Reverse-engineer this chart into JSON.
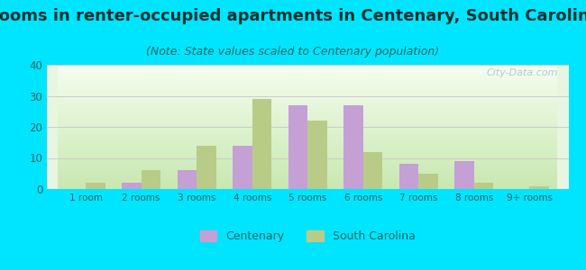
{
  "title": "Rooms in renter-occupied apartments in Centenary, South Carolina",
  "subtitle": "(Note: State values scaled to Centenary population)",
  "categories": [
    "1 room",
    "2 rooms",
    "3 rooms",
    "4 rooms",
    "5 rooms",
    "6 rooms",
    "7 rooms",
    "8 rooms",
    "9+ rooms"
  ],
  "centenary": [
    0,
    2,
    6,
    14,
    27,
    27,
    8,
    9,
    0
  ],
  "south_carolina": [
    2,
    6,
    14,
    29,
    22,
    12,
    5,
    2,
    1
  ],
  "centenary_color": "#c4a0d4",
  "sc_color": "#b8cc88",
  "background_outer": "#00e5ff",
  "ylim": [
    0,
    40
  ],
  "yticks": [
    0,
    10,
    20,
    30,
    40
  ],
  "bar_width": 0.35,
  "title_fontsize": 13,
  "subtitle_fontsize": 9,
  "title_color": "#003333",
  "subtitle_color": "#006666",
  "tick_color": "#006666",
  "legend_label_centenary": "Centenary",
  "legend_label_sc": "South Carolina"
}
